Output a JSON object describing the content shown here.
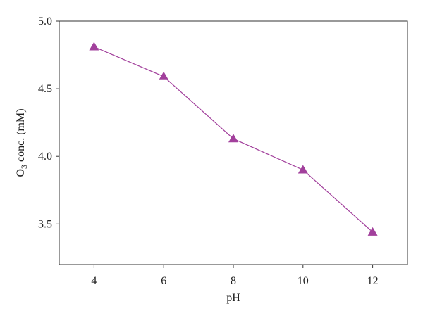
{
  "chart_data": {
    "type": "line",
    "x_label": "pH",
    "y_label_parts": [
      "O",
      "3",
      " conc. (mM)"
    ],
    "x": [
      4,
      6,
      8,
      10,
      12
    ],
    "series": [
      {
        "color": "#a2409c",
        "values": [
          4.81,
          4.59,
          4.13,
          3.9,
          3.44
        ]
      }
    ],
    "xlim": [
      3,
      13
    ],
    "xticks": [
      4,
      6,
      8,
      10,
      12
    ],
    "ylim": [
      3.2,
      5.0
    ],
    "yticks": [
      {
        "value": 3.5,
        "label": "3.5"
      },
      {
        "value": 4.0,
        "label": "4.0"
      },
      {
        "value": 4.5,
        "label": "4.5"
      },
      {
        "value": 5.0,
        "label": "5.0"
      }
    ],
    "marker": "triangle"
  }
}
